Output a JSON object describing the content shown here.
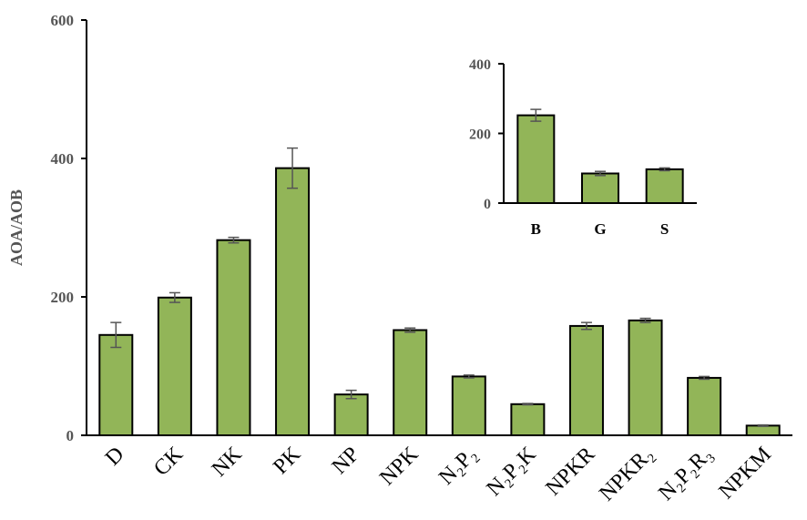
{
  "chart_data": [
    {
      "type": "bar",
      "title": "",
      "xlabel": "",
      "ylabel": "AOA/AOB",
      "ylim": [
        0,
        600
      ],
      "yticks": [
        "0",
        "200",
        "400",
        "600"
      ],
      "grid": false,
      "bar_color": "#92b558",
      "categories": [
        "D",
        "CK",
        "NK",
        "PK",
        "NP",
        "NPK",
        "N₂P₂",
        "N₂P₂K",
        "NPKR",
        "NPKR₂",
        "N₂P₂R₃",
        "NPKM"
      ],
      "values": [
        145,
        199,
        282,
        386,
        59,
        152,
        85,
        45,
        158,
        166,
        83,
        14
      ],
      "errors": [
        18,
        7,
        4,
        29,
        6,
        3,
        2,
        1,
        5,
        3,
        2,
        1
      ]
    },
    {
      "type": "bar",
      "title": "",
      "xlabel": "",
      "ylabel": "",
      "ylim": [
        0,
        400
      ],
      "yticks": [
        "0",
        "200",
        "400"
      ],
      "grid": false,
      "bar_color": "#92b558",
      "categories": [
        "B",
        "G",
        "S"
      ],
      "values": [
        252,
        85,
        97
      ],
      "errors": [
        17,
        6,
        4
      ]
    }
  ]
}
